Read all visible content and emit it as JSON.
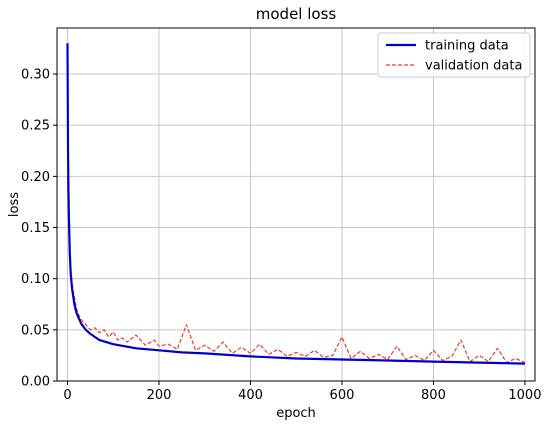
{
  "chart_data": {
    "type": "line",
    "title": "model loss",
    "xlabel": "epoch",
    "ylabel": "loss",
    "xlim": [
      -23,
      1022
    ],
    "ylim": [
      0.0,
      0.345
    ],
    "xticks": [
      0,
      200,
      400,
      600,
      800,
      1000
    ],
    "yticks": [
      0.0,
      0.05,
      0.1,
      0.15,
      0.2,
      0.25,
      0.3
    ],
    "xtick_labels": [
      "0",
      "200",
      "400",
      "600",
      "800",
      "1000"
    ],
    "ytick_labels": [
      "0.00",
      "0.05",
      "0.10",
      "0.15",
      "0.20",
      "0.25",
      "0.30"
    ],
    "grid": true,
    "legend_position": "top-right",
    "series": [
      {
        "name": "training data",
        "color": "#0000cc",
        "style": "solid",
        "x": [
          0,
          1,
          2,
          3,
          4,
          5,
          7,
          10,
          15,
          20,
          30,
          40,
          50,
          70,
          100,
          150,
          200,
          250,
          300,
          400,
          500,
          600,
          700,
          800,
          900,
          1000
        ],
        "y": [
          0.33,
          0.23,
          0.19,
          0.16,
          0.14,
          0.125,
          0.105,
          0.09,
          0.075,
          0.066,
          0.056,
          0.05,
          0.046,
          0.04,
          0.036,
          0.032,
          0.03,
          0.028,
          0.027,
          0.024,
          0.022,
          0.021,
          0.02,
          0.019,
          0.018,
          0.017
        ]
      },
      {
        "name": "validation data",
        "color": "#e8402a",
        "style": "dashed",
        "x": [
          0,
          2,
          5,
          10,
          15,
          20,
          25,
          30,
          40,
          50,
          60,
          70,
          80,
          90,
          100,
          110,
          120,
          130,
          150,
          170,
          190,
          200,
          220,
          240,
          260,
          280,
          300,
          320,
          340,
          360,
          380,
          400,
          420,
          440,
          460,
          480,
          500,
          520,
          540,
          560,
          580,
          600,
          620,
          640,
          660,
          680,
          700,
          720,
          740,
          760,
          780,
          800,
          820,
          840,
          860,
          880,
          900,
          920,
          940,
          960,
          980,
          1000
        ],
        "y": [
          0.2,
          0.17,
          0.12,
          0.095,
          0.082,
          0.07,
          0.064,
          0.06,
          0.055,
          0.05,
          0.052,
          0.047,
          0.05,
          0.043,
          0.048,
          0.04,
          0.042,
          0.038,
          0.045,
          0.035,
          0.04,
          0.034,
          0.036,
          0.031,
          0.055,
          0.03,
          0.035,
          0.029,
          0.038,
          0.027,
          0.033,
          0.027,
          0.036,
          0.026,
          0.031,
          0.024,
          0.028,
          0.024,
          0.03,
          0.023,
          0.025,
          0.043,
          0.022,
          0.029,
          0.022,
          0.026,
          0.021,
          0.034,
          0.021,
          0.025,
          0.02,
          0.03,
          0.02,
          0.024,
          0.04,
          0.019,
          0.025,
          0.019,
          0.032,
          0.018,
          0.022,
          0.018
        ]
      }
    ]
  }
}
